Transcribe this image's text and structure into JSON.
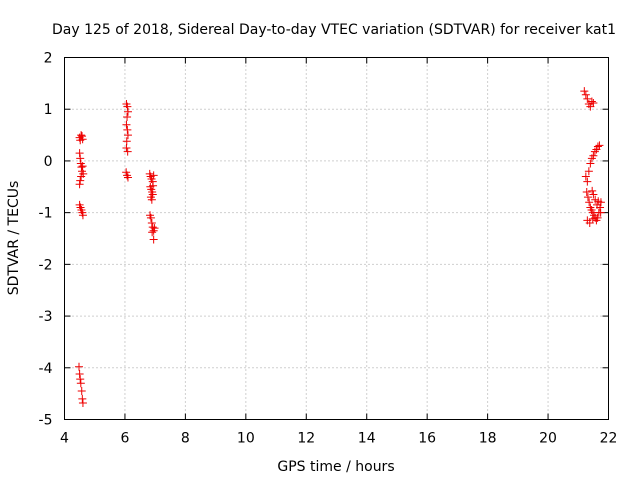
{
  "chart_data": {
    "type": "scatter",
    "title": "Day 125 of 2018, Sidereal Day-to-day VTEC variation (SDTVAR) for receiver kat1",
    "xlabel": "GPS time / hours",
    "ylabel": "SDTVAR / TECUs",
    "xlim": [
      4,
      22
    ],
    "ylim": [
      -5,
      2
    ],
    "xticks": [
      "4",
      "6",
      "8",
      "10",
      "12",
      "14",
      "16",
      "18",
      "20",
      "22"
    ],
    "yticks": [
      "2",
      "1",
      "0",
      "-1",
      "-2",
      "-3",
      "-4",
      "-5"
    ],
    "grid": true,
    "marker": "+",
    "color": "#ee0000",
    "series": [
      {
        "name": "kat1",
        "points": [
          [
            4.5,
            0.45
          ],
          [
            4.52,
            0.4
          ],
          [
            4.55,
            0.5
          ],
          [
            4.58,
            0.48
          ],
          [
            4.6,
            0.42
          ],
          [
            4.5,
            0.15
          ],
          [
            4.52,
            0.05
          ],
          [
            4.54,
            -0.05
          ],
          [
            4.56,
            -0.12
          ],
          [
            4.58,
            -0.2
          ],
          [
            4.55,
            -0.3
          ],
          [
            4.52,
            -0.38
          ],
          [
            4.5,
            -0.45
          ],
          [
            4.6,
            -0.1
          ],
          [
            4.62,
            -0.25
          ],
          [
            4.5,
            -0.85
          ],
          [
            4.53,
            -0.9
          ],
          [
            4.56,
            -0.95
          ],
          [
            4.59,
            -1.0
          ],
          [
            4.61,
            -1.05
          ],
          [
            4.48,
            -3.98
          ],
          [
            4.5,
            -4.12
          ],
          [
            4.52,
            -4.22
          ],
          [
            4.54,
            -4.3
          ],
          [
            4.57,
            -4.45
          ],
          [
            4.59,
            -4.6
          ],
          [
            4.61,
            -4.68
          ],
          [
            6.05,
            1.1
          ],
          [
            6.08,
            1.05
          ],
          [
            6.1,
            0.95
          ],
          [
            6.07,
            0.85
          ],
          [
            6.05,
            0.7
          ],
          [
            6.08,
            0.6
          ],
          [
            6.1,
            0.5
          ],
          [
            6.06,
            0.38
          ],
          [
            6.05,
            0.25
          ],
          [
            6.09,
            0.18
          ],
          [
            6.04,
            -0.22
          ],
          [
            6.07,
            -0.28
          ],
          [
            6.1,
            -0.32
          ],
          [
            6.82,
            -0.25
          ],
          [
            6.85,
            -0.3
          ],
          [
            6.88,
            -0.35
          ],
          [
            6.92,
            -0.4
          ],
          [
            6.95,
            -0.28
          ],
          [
            6.84,
            -0.5
          ],
          [
            6.87,
            -0.55
          ],
          [
            6.9,
            -0.6
          ],
          [
            6.93,
            -0.48
          ],
          [
            6.86,
            -0.7
          ],
          [
            6.89,
            -0.75
          ],
          [
            6.92,
            -0.65
          ],
          [
            6.83,
            -1.05
          ],
          [
            6.86,
            -1.1
          ],
          [
            6.89,
            -1.2
          ],
          [
            6.92,
            -1.28
          ],
          [
            6.95,
            -1.35
          ],
          [
            6.98,
            -1.3
          ],
          [
            6.9,
            -1.38
          ],
          [
            6.95,
            -1.52
          ],
          [
            21.2,
            1.35
          ],
          [
            21.25,
            1.28
          ],
          [
            21.3,
            1.2
          ],
          [
            21.35,
            1.1
          ],
          [
            21.4,
            1.05
          ],
          [
            21.45,
            1.15
          ],
          [
            21.5,
            1.12
          ],
          [
            21.25,
            -0.3
          ],
          [
            21.3,
            -0.4
          ],
          [
            21.35,
            -0.2
          ],
          [
            21.4,
            -0.05
          ],
          [
            21.45,
            0.05
          ],
          [
            21.5,
            0.1
          ],
          [
            21.55,
            0.18
          ],
          [
            21.6,
            0.22
          ],
          [
            21.65,
            0.28
          ],
          [
            21.7,
            0.3
          ],
          [
            21.28,
            -0.6
          ],
          [
            21.32,
            -0.7
          ],
          [
            21.36,
            -0.8
          ],
          [
            21.4,
            -0.9
          ],
          [
            21.44,
            -0.95
          ],
          [
            21.48,
            -1.0
          ],
          [
            21.52,
            -1.05
          ],
          [
            21.56,
            -1.1
          ],
          [
            21.6,
            -1.15
          ],
          [
            21.64,
            -1.1
          ],
          [
            21.68,
            -1.0
          ],
          [
            21.72,
            -0.9
          ],
          [
            21.75,
            -0.8
          ],
          [
            21.62,
            -0.85
          ],
          [
            21.56,
            -0.75
          ],
          [
            21.5,
            -0.65
          ],
          [
            21.46,
            -0.58
          ],
          [
            21.3,
            -1.15
          ],
          [
            21.38,
            -1.2
          ],
          [
            21.48,
            -1.12
          ],
          [
            21.66,
            -0.78
          ],
          [
            21.74,
            -1.0
          ]
        ]
      }
    ]
  }
}
